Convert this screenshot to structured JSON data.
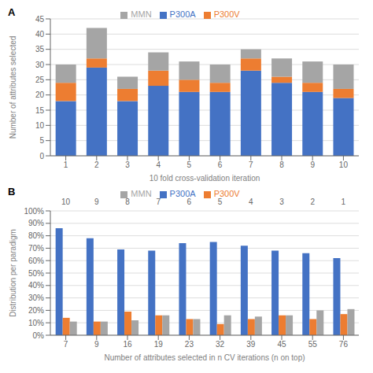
{
  "chart_data": [
    {
      "type": "bar",
      "title": "A",
      "stacked": true,
      "grid": true,
      "legend": "top",
      "categories": [
        1,
        2,
        3,
        4,
        5,
        6,
        7,
        8,
        9,
        10
      ],
      "series": [
        {
          "name": "P300A",
          "color": "#4472C4",
          "values": [
            18,
            29,
            18,
            23,
            21,
            21,
            28,
            24,
            21,
            19
          ]
        },
        {
          "name": "P300V",
          "color": "#ED7D31",
          "values": [
            6,
            3,
            4,
            5,
            4,
            3,
            4,
            2,
            3,
            3
          ]
        },
        {
          "name": "MMN",
          "color": "#A5A5A5",
          "values": [
            6,
            10,
            4,
            6,
            6,
            6,
            3,
            6,
            7,
            8
          ]
        }
      ],
      "xlabel": "10 fold cross-validation iteration",
      "ylabel": "Number of attributes selected",
      "ylim": [
        0,
        45
      ],
      "yticks": [
        0,
        5,
        10,
        15,
        20,
        25,
        30,
        35,
        40,
        45
      ]
    },
    {
      "type": "bar",
      "title": "B",
      "stacked": false,
      "grid": true,
      "legend": "top",
      "categories": [
        7,
        9,
        16,
        19,
        23,
        32,
        39,
        45,
        55,
        76
      ],
      "series": [
        {
          "name": "P300A",
          "color": "#4472C4",
          "values": [
            86,
            78,
            69,
            68,
            74,
            75,
            72,
            68,
            66,
            62
          ]
        },
        {
          "name": "P300V",
          "color": "#ED7D31",
          "values": [
            14,
            11,
            19,
            16,
            13,
            9,
            13,
            16,
            13,
            17
          ]
        },
        {
          "name": "MMN",
          "color": "#A5A5A5",
          "values": [
            11,
            11,
            12,
            16,
            13,
            16,
            15,
            16,
            20,
            21
          ]
        }
      ],
      "annotations": [
        {
          "x": 7,
          "text": "10"
        },
        {
          "x": 9,
          "text": "9"
        },
        {
          "x": 16,
          "text": "8"
        },
        {
          "x": 19,
          "text": "7"
        },
        {
          "x": 23,
          "text": "6"
        },
        {
          "x": 32,
          "text": "5"
        },
        {
          "x": 39,
          "text": "4"
        },
        {
          "x": 45,
          "text": "3"
        },
        {
          "x": 55,
          "text": "2"
        },
        {
          "x": 76,
          "text": "1"
        }
      ],
      "xlabel": "Number of attributes selected in n CV iterations (n on top)",
      "ylabel": "Distribution per paradigm",
      "ylim": [
        0,
        100
      ],
      "yticks": [
        {
          "value": 0,
          "label": "0%"
        },
        {
          "value": 10,
          "label": "10%"
        },
        {
          "value": 20,
          "label": "20%"
        },
        {
          "value": 30,
          "label": "30%"
        },
        {
          "value": 40,
          "label": "40%"
        },
        {
          "value": 50,
          "label": "50%"
        },
        {
          "value": 60,
          "label": "60%"
        },
        {
          "value": 70,
          "label": "70%"
        },
        {
          "value": 80,
          "label": "80%"
        },
        {
          "value": 90,
          "label": "90%"
        },
        {
          "value": 100,
          "label": "100%"
        }
      ]
    }
  ]
}
